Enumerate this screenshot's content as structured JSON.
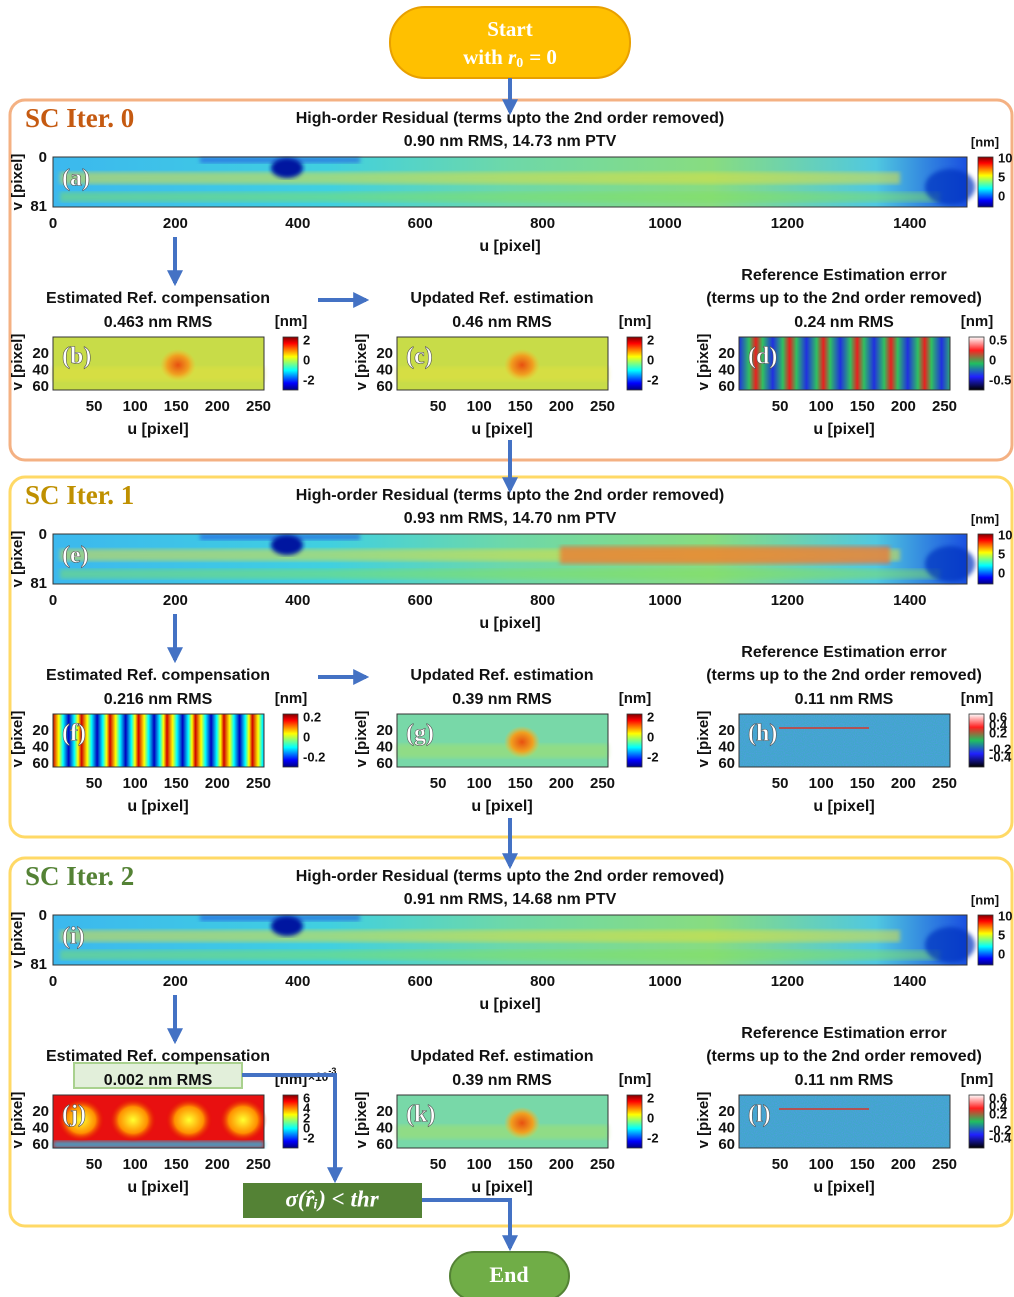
{
  "start": {
    "line1": "Start",
    "prefix": "with",
    "var": "r",
    "sub": "0",
    "suffix": "=  0"
  },
  "iterations": [
    {
      "label": "SC Iter. 0",
      "residual": {
        "title": "High-order Residual (terms upto the 2nd order removed)",
        "subtitle": "0.90 nm RMS, 14.73 nm PTV",
        "panel": "(a)",
        "ylabel": "v [pixel]",
        "yticks": [
          0,
          81
        ],
        "xticks": [
          0,
          200,
          400,
          600,
          800,
          1000,
          1200,
          1400
        ],
        "xlabel": "u [pixel]",
        "unit": "[nm]",
        "cbar_ticks": [
          10,
          5,
          0
        ]
      },
      "panels": [
        {
          "title_lines": [
            "Estimated Ref. compensation"
          ],
          "rms": "0.463 nm RMS",
          "panel": "(b)",
          "ylabel": "v [pixel]",
          "yticks": [
            20,
            40,
            60
          ],
          "xticks": [
            50,
            100,
            150,
            200,
            250
          ],
          "xlabel": "u [pixel]",
          "unit": "[nm]",
          "cbar_ticks": [
            2,
            0,
            -2
          ]
        },
        {
          "title_lines": [
            "Updated Ref. estimation"
          ],
          "rms": "0.46 nm RMS",
          "panel": "(c)",
          "ylabel": "v [pixel]",
          "yticks": [
            20,
            40,
            60
          ],
          "xticks": [
            50,
            100,
            150,
            200,
            250
          ],
          "xlabel": "u [pixel]",
          "unit": "[nm]",
          "cbar_ticks": [
            2,
            0,
            -2
          ]
        },
        {
          "title_lines": [
            "Reference Estimation error",
            "(terms up to the 2nd order removed)"
          ],
          "rms": "0.24 nm RMS",
          "panel": "(d)",
          "ylabel": "v [pixel]",
          "yticks": [
            20,
            40,
            60
          ],
          "xticks": [
            50,
            100,
            150,
            200,
            250
          ],
          "xlabel": "u [pixel]",
          "unit": "[nm]",
          "cbar_ticks": [
            0.5,
            0,
            -0.5
          ]
        }
      ]
    },
    {
      "label": "SC Iter. 1",
      "residual": {
        "title": "High-order Residual (terms upto the 2nd order removed)",
        "subtitle": "0.93 nm RMS, 14.70 nm PTV",
        "panel": "(e)",
        "ylabel": "v [pixel]",
        "yticks": [
          0,
          81
        ],
        "xticks": [
          0,
          200,
          400,
          600,
          800,
          1000,
          1200,
          1400
        ],
        "xlabel": "u [pixel]",
        "unit": "[nm]",
        "cbar_ticks": [
          10,
          5,
          0
        ]
      },
      "panels": [
        {
          "title_lines": [
            "Estimated Ref. compensation"
          ],
          "rms": "0.216 nm RMS",
          "panel": "(f)",
          "ylabel": "v [pixel]",
          "yticks": [
            20,
            40,
            60
          ],
          "xticks": [
            50,
            100,
            150,
            200,
            250
          ],
          "xlabel": "u [pixel]",
          "unit": "[nm]",
          "cbar_ticks": [
            0.2,
            0,
            -0.2
          ]
        },
        {
          "title_lines": [
            "Updated Ref. estimation"
          ],
          "rms": "0.39 nm RMS",
          "panel": "(g)",
          "ylabel": "v [pixel]",
          "yticks": [
            20,
            40,
            60
          ],
          "xticks": [
            50,
            100,
            150,
            200,
            250
          ],
          "xlabel": "u [pixel]",
          "unit": "[nm]",
          "cbar_ticks": [
            2,
            0,
            -2
          ]
        },
        {
          "title_lines": [
            "Reference Estimation error",
            "(terms up to the 2nd order removed)"
          ],
          "rms": "0.11 nm RMS",
          "panel": "(h)",
          "ylabel": "v [pixel]",
          "yticks": [
            20,
            40,
            60
          ],
          "xticks": [
            50,
            100,
            150,
            200,
            250
          ],
          "xlabel": "u [pixel]",
          "unit": "[nm]",
          "cbar_ticks": [
            0.6,
            0.4,
            0.2,
            -0.2,
            -0.4
          ]
        }
      ]
    },
    {
      "label": "SC Iter. 2",
      "residual": {
        "title": "High-order Residual (terms upto the 2nd order removed)",
        "subtitle": "0.91 nm RMS, 14.68 nm PTV",
        "panel": "(i)",
        "ylabel": "v [pixel]",
        "yticks": [
          0,
          81
        ],
        "xticks": [
          0,
          200,
          400,
          600,
          800,
          1000,
          1200,
          1400
        ],
        "xlabel": "u [pixel]",
        "unit": "[nm]",
        "cbar_ticks": [
          10,
          5,
          0
        ]
      },
      "panels": [
        {
          "title_lines": [
            "Estimated Ref. compensation"
          ],
          "rms": "0.002 nm RMS",
          "panel": "(j)",
          "ylabel": "v [pixel]",
          "yticks": [
            20,
            40,
            60
          ],
          "xticks": [
            50,
            100,
            150,
            200,
            250
          ],
          "xlabel": "u [pixel]",
          "unit": "[nm]",
          "cbar_ticks": [
            6,
            4,
            2,
            0,
            -2
          ],
          "cbar_multiplier": {
            "base": "×10",
            "exp": "-3"
          }
        },
        {
          "title_lines": [
            "Updated Ref. estimation"
          ],
          "rms": "0.39 nm RMS",
          "panel": "(k)",
          "ylabel": "v [pixel]",
          "yticks": [
            20,
            40,
            60
          ],
          "xticks": [
            50,
            100,
            150,
            200,
            250
          ],
          "xlabel": "u [pixel]",
          "unit": "[nm]",
          "cbar_ticks": [
            2,
            0,
            -2
          ]
        },
        {
          "title_lines": [
            "Reference Estimation error",
            "(terms up to the 2nd order removed)"
          ],
          "rms": "0.11 nm RMS",
          "panel": "(l)",
          "ylabel": "v [pixel]",
          "yticks": [
            20,
            40,
            60
          ],
          "xticks": [
            50,
            100,
            150,
            200,
            250
          ],
          "xlabel": "u [pixel]",
          "unit": "[nm]",
          "cbar_ticks": [
            0.6,
            0.4,
            0.2,
            -0.2,
            -0.4
          ]
        }
      ]
    }
  ],
  "condition": "σ(r̂ᵢ) < thr",
  "end": "End"
}
